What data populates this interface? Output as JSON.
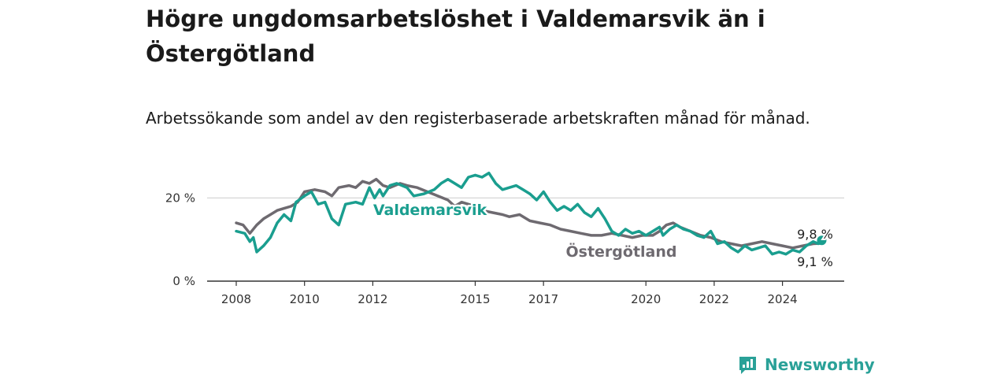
{
  "title": "Högre ungdomsarbetslöshet i Valdemarsvik än i Östergötland",
  "subtitle": "Arbetssökande som andel av den registerbaserade arbetskraften månad för månad.",
  "brand": {
    "name": "Newsworthy",
    "icon": "newsworthy-logo-icon"
  },
  "colors": {
    "valdemarsvik": "#1a9e8f",
    "ostergotland": "#6e6a70",
    "grid": "#d6d6d6",
    "axis": "#333333"
  },
  "chart_data": {
    "type": "line",
    "title": "Högre ungdomsarbetslöshet i Valdemarsvik än i Östergötland",
    "subtitle": "Arbetssökande som andel av den registerbaserade arbetskraften månad för månad.",
    "xlabel": "",
    "ylabel": "",
    "xlim": [
      2008,
      2025.2
    ],
    "ylim": [
      0,
      25
    ],
    "x_ticks": [
      2008,
      2010,
      2012,
      2015,
      2017,
      2020,
      2022,
      2024
    ],
    "x_tick_labels": [
      "2008",
      "2010",
      "2012",
      "2015",
      "2017",
      "2020",
      "2022",
      "2024"
    ],
    "y_ticks": [
      0,
      20
    ],
    "y_tick_labels": [
      "0 %",
      "20 %"
    ],
    "grid": true,
    "legend": "inline labels on lines",
    "series": [
      {
        "name": "Valdemarsvik",
        "color": "#1a9e8f",
        "end_label": "9,8 %",
        "points": [
          [
            2008.0,
            12.0
          ],
          [
            2008.25,
            11.5
          ],
          [
            2008.4,
            9.5
          ],
          [
            2008.5,
            10.5
          ],
          [
            2008.6,
            7.0
          ],
          [
            2008.8,
            8.5
          ],
          [
            2009.0,
            10.5
          ],
          [
            2009.2,
            14.0
          ],
          [
            2009.4,
            16.0
          ],
          [
            2009.6,
            14.5
          ],
          [
            2009.75,
            19.0
          ],
          [
            2010.0,
            20.5
          ],
          [
            2010.2,
            21.5
          ],
          [
            2010.4,
            18.5
          ],
          [
            2010.6,
            19.0
          ],
          [
            2010.8,
            15.0
          ],
          [
            2011.0,
            13.5
          ],
          [
            2011.2,
            18.5
          ],
          [
            2011.5,
            19.0
          ],
          [
            2011.7,
            18.5
          ],
          [
            2011.9,
            22.5
          ],
          [
            2012.05,
            20.0
          ],
          [
            2012.2,
            22.0
          ],
          [
            2012.3,
            20.5
          ],
          [
            2012.5,
            23.0
          ],
          [
            2012.7,
            23.5
          ],
          [
            2013.0,
            22.5
          ],
          [
            2013.2,
            20.5
          ],
          [
            2013.5,
            21.0
          ],
          [
            2013.8,
            22.0
          ],
          [
            2014.0,
            23.5
          ],
          [
            2014.2,
            24.5
          ],
          [
            2014.4,
            23.5
          ],
          [
            2014.6,
            22.5
          ],
          [
            2014.8,
            25.0
          ],
          [
            2015.0,
            25.5
          ],
          [
            2015.2,
            25.0
          ],
          [
            2015.4,
            26.0
          ],
          [
            2015.6,
            23.5
          ],
          [
            2015.8,
            22.0
          ],
          [
            2016.0,
            22.5
          ],
          [
            2016.2,
            23.0
          ],
          [
            2016.4,
            22.0
          ],
          [
            2016.6,
            21.0
          ],
          [
            2016.8,
            19.5
          ],
          [
            2017.0,
            21.5
          ],
          [
            2017.2,
            19.0
          ],
          [
            2017.4,
            17.0
          ],
          [
            2017.6,
            18.0
          ],
          [
            2017.8,
            17.0
          ],
          [
            2018.0,
            18.5
          ],
          [
            2018.2,
            16.5
          ],
          [
            2018.4,
            15.5
          ],
          [
            2018.6,
            17.5
          ],
          [
            2018.8,
            15.0
          ],
          [
            2019.0,
            12.0
          ],
          [
            2019.2,
            11.0
          ],
          [
            2019.4,
            12.5
          ],
          [
            2019.6,
            11.5
          ],
          [
            2019.8,
            12.0
          ],
          [
            2020.0,
            11.0
          ],
          [
            2020.2,
            12.0
          ],
          [
            2020.4,
            13.0
          ],
          [
            2020.5,
            11.0
          ],
          [
            2020.7,
            12.5
          ],
          [
            2020.9,
            13.5
          ],
          [
            2021.1,
            12.5
          ],
          [
            2021.3,
            12.0
          ],
          [
            2021.5,
            11.0
          ],
          [
            2021.7,
            10.5
          ],
          [
            2021.9,
            12.0
          ],
          [
            2022.1,
            9.0
          ],
          [
            2022.3,
            9.5
          ],
          [
            2022.5,
            8.0
          ],
          [
            2022.7,
            7.0
          ],
          [
            2022.9,
            8.5
          ],
          [
            2023.1,
            7.5
          ],
          [
            2023.3,
            8.0
          ],
          [
            2023.5,
            8.5
          ],
          [
            2023.7,
            6.5
          ],
          [
            2023.9,
            7.0
          ],
          [
            2024.1,
            6.5
          ],
          [
            2024.3,
            7.5
          ],
          [
            2024.5,
            7.0
          ],
          [
            2024.7,
            8.5
          ],
          [
            2024.9,
            9.5
          ],
          [
            2025.05,
            9.0
          ],
          [
            2025.15,
            9.8
          ]
        ]
      },
      {
        "name": "Östergötland",
        "color": "#6e6a70",
        "end_label": "9,1 %",
        "points": [
          [
            2008.0,
            14.0
          ],
          [
            2008.2,
            13.5
          ],
          [
            2008.4,
            11.5
          ],
          [
            2008.6,
            13.5
          ],
          [
            2008.8,
            15.0
          ],
          [
            2009.0,
            16.0
          ],
          [
            2009.2,
            17.0
          ],
          [
            2009.4,
            17.5
          ],
          [
            2009.6,
            18.0
          ],
          [
            2009.8,
            19.0
          ],
          [
            2010.0,
            21.5
          ],
          [
            2010.3,
            22.0
          ],
          [
            2010.6,
            21.5
          ],
          [
            2010.8,
            20.5
          ],
          [
            2011.0,
            22.5
          ],
          [
            2011.3,
            23.0
          ],
          [
            2011.5,
            22.5
          ],
          [
            2011.7,
            24.0
          ],
          [
            2011.9,
            23.5
          ],
          [
            2012.1,
            24.5
          ],
          [
            2012.3,
            23.0
          ],
          [
            2012.5,
            22.5
          ],
          [
            2012.8,
            23.5
          ],
          [
            2013.0,
            23.0
          ],
          [
            2013.3,
            22.5
          ],
          [
            2013.6,
            21.5
          ],
          [
            2013.9,
            20.5
          ],
          [
            2014.2,
            19.5
          ],
          [
            2014.4,
            18.0
          ],
          [
            2014.6,
            19.0
          ],
          [
            2014.8,
            18.5
          ],
          [
            2015.0,
            18.0
          ],
          [
            2015.2,
            17.0
          ],
          [
            2015.5,
            16.5
          ],
          [
            2015.8,
            16.0
          ],
          [
            2016.0,
            15.5
          ],
          [
            2016.3,
            16.0
          ],
          [
            2016.6,
            14.5
          ],
          [
            2016.9,
            14.0
          ],
          [
            2017.2,
            13.5
          ],
          [
            2017.5,
            12.5
          ],
          [
            2017.8,
            12.0
          ],
          [
            2018.1,
            11.5
          ],
          [
            2018.4,
            11.0
          ],
          [
            2018.7,
            11.0
          ],
          [
            2019.0,
            11.5
          ],
          [
            2019.3,
            11.0
          ],
          [
            2019.6,
            10.5
          ],
          [
            2019.9,
            11.0
          ],
          [
            2020.2,
            11.0
          ],
          [
            2020.4,
            12.0
          ],
          [
            2020.6,
            13.5
          ],
          [
            2020.8,
            14.0
          ],
          [
            2021.0,
            13.0
          ],
          [
            2021.3,
            12.0
          ],
          [
            2021.6,
            11.0
          ],
          [
            2021.9,
            10.5
          ],
          [
            2022.2,
            9.5
          ],
          [
            2022.5,
            9.0
          ],
          [
            2022.8,
            8.5
          ],
          [
            2023.1,
            9.0
          ],
          [
            2023.4,
            9.5
          ],
          [
            2023.7,
            9.0
          ],
          [
            2024.0,
            8.5
          ],
          [
            2024.3,
            8.0
          ],
          [
            2024.6,
            8.5
          ],
          [
            2024.9,
            9.0
          ],
          [
            2025.15,
            9.1
          ]
        ]
      }
    ]
  }
}
